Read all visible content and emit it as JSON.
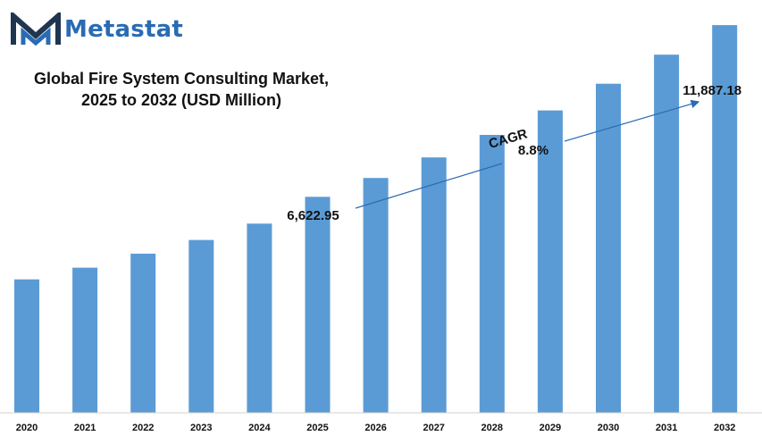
{
  "brand": {
    "name": "Metastat",
    "color": "#2a6bb3",
    "icon": "metastat-logo-icon"
  },
  "chart_data": {
    "type": "bar",
    "title_line1": "Global Fire System Consulting Market,",
    "title_line2": "2025 to 2032 (USD Million)",
    "categories": [
      "2020",
      "2021",
      "2022",
      "2023",
      "2024",
      "2025",
      "2026",
      "2027",
      "2028",
      "2029",
      "2030",
      "2031",
      "2032"
    ],
    "values": [
      4090,
      4450,
      4880,
      5300,
      5800,
      6622.95,
      7200,
      7830,
      8520,
      9270,
      10090,
      10980,
      11887.18
    ],
    "data_labels": [
      {
        "category": "2025",
        "text": "6,622.95"
      },
      {
        "category": "2032",
        "text": "11,887.18"
      }
    ],
    "annotation": {
      "label": "CAGR",
      "value": "8.8%"
    },
    "bar_color": "#5b9bd5",
    "ylim": [
      0,
      12000
    ],
    "grid": false,
    "legend": false
  }
}
